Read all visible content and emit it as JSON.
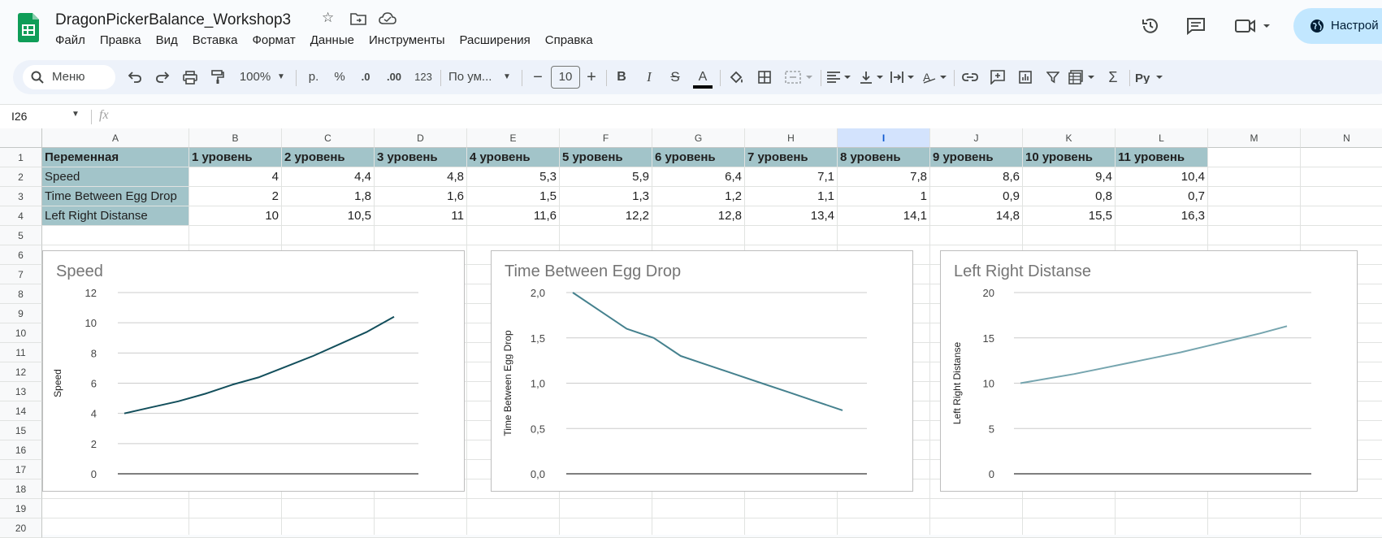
{
  "app": {
    "doc_title": "DragonPickerBalance_Workshop3",
    "share_label": "Настрой",
    "menu": [
      "Файл",
      "Правка",
      "Вид",
      "Вставка",
      "Формат",
      "Данные",
      "Инструменты",
      "Расширения",
      "Справка"
    ]
  },
  "toolbar": {
    "search_label": "Меню",
    "zoom": "100%",
    "currency": "р.",
    "percent": "%",
    "dec_decrease": ".0",
    "dec_increase": ".00",
    "number_format": "123",
    "font_name": "По ум...",
    "font_size": "10"
  },
  "formula_bar": {
    "cell_ref": "I26",
    "fx": "fx",
    "value": ""
  },
  "sheet": {
    "columns": [
      "A",
      "B",
      "C",
      "D",
      "E",
      "F",
      "G",
      "H",
      "I",
      "J",
      "K",
      "L",
      "M",
      "N"
    ],
    "rows": [
      "1",
      "2",
      "3",
      "4",
      "5",
      "6",
      "7",
      "8",
      "9",
      "10",
      "11",
      "12",
      "13",
      "14",
      "15",
      "16",
      "17",
      "18",
      "19",
      "20"
    ],
    "header_row": [
      "Переменная",
      "1 уровень",
      "2 уровень",
      "3 уровень",
      "4 уровень",
      "5 уровень",
      "6 уровень",
      "7 уровень",
      "8 уровень",
      "9 уровень",
      "10 уровень",
      "11 уровень"
    ],
    "data_rows": [
      [
        "Speed",
        "4",
        "4,4",
        "4,8",
        "5,3",
        "5,9",
        "6,4",
        "7,1",
        "7,8",
        "8,6",
        "9,4",
        "10,4"
      ],
      [
        "Time Between Egg Drop",
        "2",
        "1,8",
        "1,6",
        "1,5",
        "1,3",
        "1,2",
        "1,1",
        "1",
        "0,9",
        "0,8",
        "0,7"
      ],
      [
        "Left Right Distanse",
        "10",
        "10,5",
        "11",
        "11,6",
        "12,2",
        "12,8",
        "13,4",
        "14,1",
        "14,8",
        "15,5",
        "16,3"
      ]
    ]
  },
  "chart_data": [
    {
      "type": "line",
      "title": "Speed",
      "ylabel": "Speed",
      "xlabel": "",
      "x": [
        1,
        2,
        3,
        4,
        5,
        6,
        7,
        8,
        9,
        10,
        11
      ],
      "values": [
        4,
        4.4,
        4.8,
        5.3,
        5.9,
        6.4,
        7.1,
        7.8,
        8.6,
        9.4,
        10.4
      ],
      "ylim": [
        0,
        12
      ],
      "yticks": [
        "0",
        "2",
        "4",
        "6",
        "8",
        "10",
        "12"
      ],
      "color": "#134f5c",
      "grid": true
    },
    {
      "type": "line",
      "title": "Time Between Egg Drop",
      "ylabel": "Time Between Egg Drop",
      "xlabel": "",
      "x": [
        1,
        2,
        3,
        4,
        5,
        6,
        7,
        8,
        9,
        10,
        11
      ],
      "values": [
        2,
        1.8,
        1.6,
        1.5,
        1.3,
        1.2,
        1.1,
        1,
        0.9,
        0.8,
        0.7
      ],
      "ylim": [
        0,
        2
      ],
      "yticks": [
        "0,0",
        "0,5",
        "1,0",
        "1,5",
        "2,0"
      ],
      "color": "#45818e",
      "grid": true
    },
    {
      "type": "line",
      "title": "Left Right Distanse",
      "ylabel": "Left Right Distanse",
      "xlabel": "",
      "x": [
        1,
        2,
        3,
        4,
        5,
        6,
        7,
        8,
        9,
        10,
        11
      ],
      "values": [
        10,
        10.5,
        11,
        11.6,
        12.2,
        12.8,
        13.4,
        14.1,
        14.8,
        15.5,
        16.3
      ],
      "ylim": [
        0,
        20
      ],
      "yticks": [
        "0",
        "5",
        "10",
        "15",
        "20"
      ],
      "color": "#76a5af",
      "grid": true
    }
  ]
}
